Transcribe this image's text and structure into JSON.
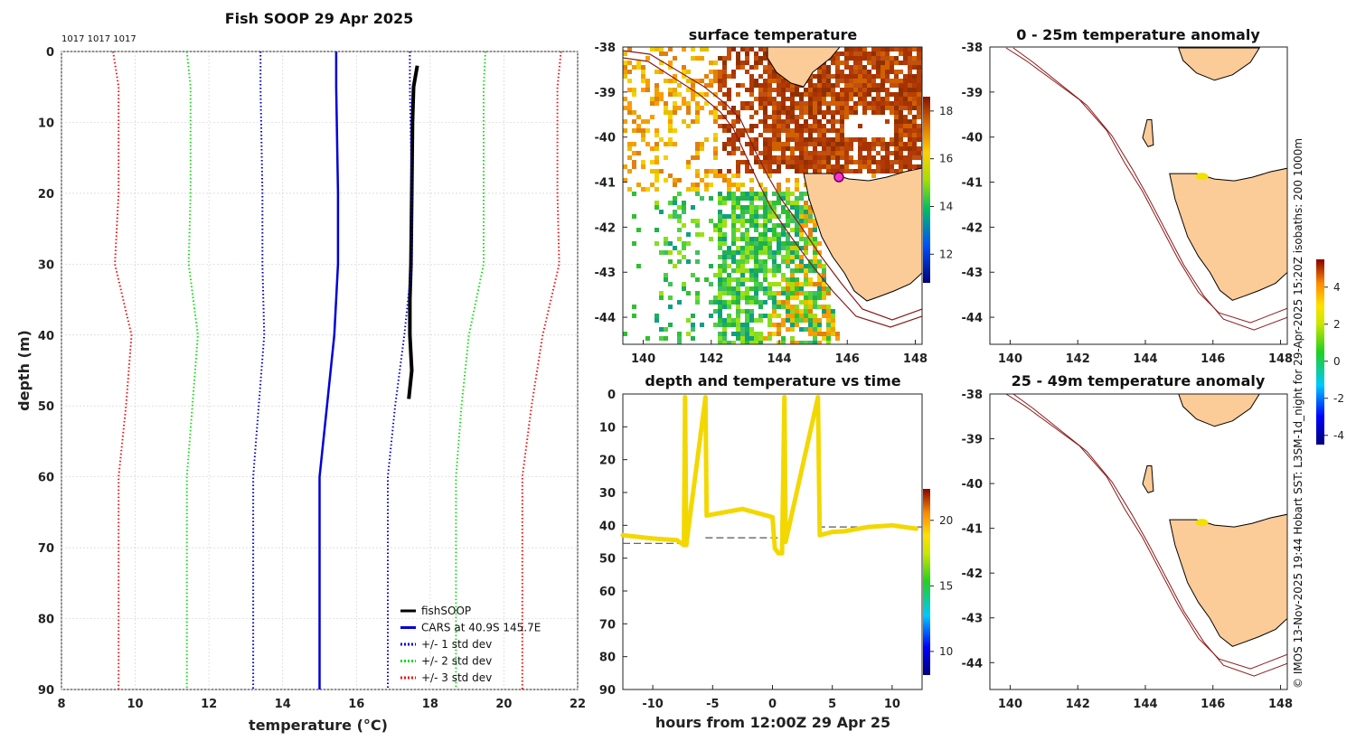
{
  "main_title": "Fish SOOP 29 Apr 2025",
  "station_ids": "1017 1017 1017",
  "credit": "© IMOS 13-Nov-2025 19:44 Hobart SST: L3SM-1d_night for 29-Apr-2025 15:20Z isobaths: 200  1000m",
  "chart_data": [
    {
      "id": "profile",
      "type": "line",
      "title": "Fish SOOP 29 Apr 2025",
      "xlabel": "temperature (°C)",
      "ylabel": "depth (m)",
      "xlim": [
        8,
        22
      ],
      "ylim": [
        0,
        90
      ],
      "xticks": [
        8,
        10,
        12,
        14,
        16,
        18,
        20,
        22
      ],
      "yticks": [
        0,
        10,
        20,
        30,
        40,
        50,
        60,
        70,
        80,
        90
      ],
      "grid": true,
      "legend_position": "bottom-right",
      "series": [
        {
          "name": "fishSOOP",
          "color": "#000000",
          "style": "solid",
          "width": 4,
          "points": [
            [
              17.65,
              2
            ],
            [
              17.55,
              5
            ],
            [
              17.52,
              10
            ],
            [
              17.5,
              20
            ],
            [
              17.48,
              30
            ],
            [
              17.45,
              35
            ],
            [
              17.45,
              40
            ],
            [
              17.5,
              45
            ],
            [
              17.42,
              49
            ]
          ]
        },
        {
          "name": "CARS at 40.9S 145.7E",
          "color": "#0000dd",
          "style": "solid",
          "width": 2.5,
          "points": [
            [
              15.45,
              0
            ],
            [
              15.45,
              5
            ],
            [
              15.5,
              20
            ],
            [
              15.5,
              30
            ],
            [
              15.4,
              40
            ],
            [
              15.2,
              50
            ],
            [
              15.0,
              60
            ],
            [
              15.0,
              90
            ]
          ]
        },
        {
          "name": "+/- 1 std dev",
          "color": "#0000cc",
          "style": "dotted",
          "width": 2,
          "points": [
            [
              13.4,
              0
            ],
            [
              13.4,
              5
            ],
            [
              13.45,
              20
            ],
            [
              13.45,
              30
            ],
            [
              13.5,
              40
            ],
            [
              13.35,
              50
            ],
            [
              13.2,
              60
            ],
            [
              13.2,
              90
            ]
          ],
          "points2": [
            [
              17.45,
              0
            ],
            [
              17.45,
              5
            ],
            [
              17.5,
              20
            ],
            [
              17.5,
              30
            ],
            [
              17.3,
              40
            ],
            [
              17.05,
              50
            ],
            [
              16.85,
              60
            ],
            [
              16.85,
              90
            ]
          ]
        },
        {
          "name": "+/- 2 std dev",
          "color": "#11dd11",
          "style": "dotted",
          "width": 2,
          "points": [
            [
              11.4,
              0
            ],
            [
              11.5,
              5
            ],
            [
              11.5,
              20
            ],
            [
              11.45,
              30
            ],
            [
              11.7,
              40
            ],
            [
              11.55,
              50
            ],
            [
              11.4,
              60
            ],
            [
              11.4,
              90
            ]
          ],
          "points2": [
            [
              19.5,
              0
            ],
            [
              19.45,
              5
            ],
            [
              19.45,
              20
            ],
            [
              19.45,
              30
            ],
            [
              19.05,
              40
            ],
            [
              18.85,
              50
            ],
            [
              18.7,
              60
            ],
            [
              18.7,
              90
            ]
          ]
        },
        {
          "name": "+/- 3 std dev",
          "color": "#ee1111",
          "style": "dotted",
          "width": 2,
          "points": [
            [
              9.4,
              0
            ],
            [
              9.55,
              5
            ],
            [
              9.55,
              20
            ],
            [
              9.45,
              30
            ],
            [
              9.9,
              40
            ],
            [
              9.75,
              50
            ],
            [
              9.55,
              60
            ],
            [
              9.55,
              90
            ]
          ],
          "points2": [
            [
              21.55,
              0
            ],
            [
              21.45,
              5
            ],
            [
              21.45,
              20
            ],
            [
              21.5,
              30
            ],
            [
              21.05,
              40
            ],
            [
              20.75,
              50
            ],
            [
              20.5,
              60
            ],
            [
              20.5,
              90
            ]
          ]
        }
      ]
    },
    {
      "id": "sst",
      "type": "heatmap",
      "title": "surface temperature",
      "xlim": [
        139.4,
        148.2
      ],
      "ylim": [
        -44.6,
        -38
      ],
      "xticks": [
        140,
        142,
        144,
        146,
        148
      ],
      "yticks": [
        -38,
        -39,
        -40,
        -41,
        -42,
        -43,
        -44
      ],
      "colorbar_ticks": [
        18,
        16,
        14,
        12
      ]
    },
    {
      "id": "anom1",
      "type": "heatmap",
      "title": "0 - 25m temperature anomaly",
      "xlim": [
        139.4,
        148.2
      ],
      "ylim": [
        -44.6,
        -38
      ],
      "xticks": [
        140,
        142,
        144,
        146,
        148
      ],
      "yticks": [
        -38,
        -39,
        -40,
        -41,
        -42,
        -43,
        -44
      ],
      "colorbar_ticks": [
        4,
        2,
        0,
        -2,
        -4
      ]
    },
    {
      "id": "depth_time",
      "type": "scatter",
      "title": "depth and temperature vs time",
      "xlabel": "hours from 12:00Z 29 Apr 25",
      "xlim": [
        -12.5,
        12.5
      ],
      "ylim": [
        0,
        90
      ],
      "xticks": [
        -10,
        -5,
        0,
        5,
        10
      ],
      "yticks": [
        0,
        10,
        20,
        30,
        40,
        50,
        60,
        70,
        80,
        90
      ],
      "colorbar_ticks": [
        20,
        15,
        10
      ],
      "points": [
        [
          -12.5,
          43
        ],
        [
          -10,
          44
        ],
        [
          -8,
          44.5
        ],
        [
          -7.4,
          46
        ],
        [
          -7.3,
          1
        ],
        [
          -7.2,
          46
        ],
        [
          -5.6,
          1
        ],
        [
          -5.5,
          37
        ],
        [
          -4,
          36
        ],
        [
          -2.5,
          35
        ],
        [
          -1,
          36.5
        ],
        [
          0,
          37.5
        ],
        [
          0.2,
          47
        ],
        [
          0.5,
          48.5
        ],
        [
          0.8,
          48.5
        ],
        [
          1.0,
          1
        ],
        [
          1.1,
          45
        ],
        [
          3.8,
          1
        ],
        [
          3.95,
          43
        ],
        [
          5,
          42
        ],
        [
          6,
          41.8
        ],
        [
          8,
          40.5
        ],
        [
          10,
          40
        ],
        [
          12,
          41
        ]
      ],
      "ref_lines": [
        {
          "x1": -12.5,
          "x2": -7.4,
          "y": 45.5
        },
        {
          "x1": -5.6,
          "x2": 1.0,
          "y": 43.8
        },
        {
          "x1": 3.8,
          "x2": 12.5,
          "y": 40.5
        }
      ]
    },
    {
      "id": "anom2",
      "type": "heatmap",
      "title": "25 - 49m temperature anomaly",
      "xlim": [
        139.4,
        148.2
      ],
      "ylim": [
        -44.6,
        -38
      ],
      "xticks": [
        140,
        142,
        144,
        146,
        148
      ],
      "yticks": [
        -38,
        -39,
        -40,
        -41,
        -42,
        -43,
        -44
      ]
    }
  ]
}
